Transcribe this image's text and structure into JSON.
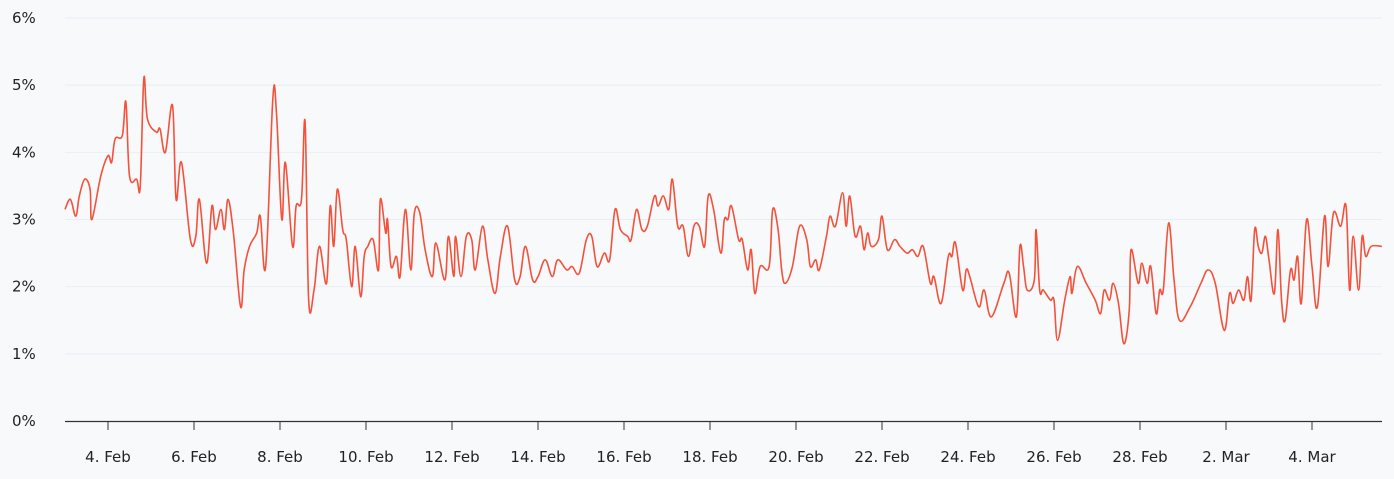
{
  "chart_data": {
    "type": "line",
    "title": "",
    "xlabel": "",
    "ylabel": "",
    "ylim": [
      0,
      6
    ],
    "y_ticks": [
      "0%",
      "1%",
      "2%",
      "3%",
      "4%",
      "5%",
      "6%"
    ],
    "x_range": [
      "02-03 00",
      "03-05 15"
    ],
    "x_ticks": [
      {
        "date": "02-04",
        "label": "4. Feb"
      },
      {
        "date": "02-06",
        "label": "6. Feb"
      },
      {
        "date": "02-08",
        "label": "8. Feb"
      },
      {
        "date": "02-10",
        "label": "10. Feb"
      },
      {
        "date": "02-12",
        "label": "12. Feb"
      },
      {
        "date": "02-14",
        "label": "14. Feb"
      },
      {
        "date": "02-16",
        "label": "16. Feb"
      },
      {
        "date": "02-18",
        "label": "18. Feb"
      },
      {
        "date": "02-20",
        "label": "20. Feb"
      },
      {
        "date": "02-22",
        "label": "22. Feb"
      },
      {
        "date": "02-24",
        "label": "24. Feb"
      },
      {
        "date": "02-26",
        "label": "26. Feb"
      },
      {
        "date": "02-28",
        "label": "28. Feb"
      },
      {
        "date": "03-02",
        "label": "2. Mar"
      },
      {
        "date": "03-04",
        "label": "4. Mar"
      }
    ],
    "grid": true,
    "legend": "none",
    "colors": {
      "line": "#f4513b",
      "grid": "#e6eef8",
      "axis": "#333333",
      "background": "#f8f9fb"
    },
    "series": [
      {
        "x": [
          "02-03 00",
          "02-03 03",
          "02-03 06",
          "02-03 08",
          "02-03 11",
          "02-03 14",
          "02-03 15",
          "02-03 20",
          "02-04 00",
          "02-04 02",
          "02-04 04",
          "02-04 08",
          "02-04 10",
          "02-04 12",
          "02-04 16",
          "02-04 18",
          "02-04 20",
          "02-04 22",
          "02-05 03",
          "02-05 05",
          "02-05 08",
          "02-05 12",
          "02-05 14",
          "02-05 17",
          "02-05 22",
          "02-06 01",
          "02-06 03",
          "02-06 07",
          "02-06 10",
          "02-06 12",
          "02-06 15",
          "02-06 17",
          "02-06 19",
          "02-06 22",
          "02-07 02",
          "02-07 04",
          "02-07 07",
          "02-07 11",
          "02-07 13",
          "02-07 16",
          "02-07 20",
          "02-07 22",
          "02-08 01",
          "02-08 03",
          "02-08 07",
          "02-08 09",
          "02-08 12",
          "02-08 14",
          "02-08 16",
          "02-08 19",
          "02-08 22",
          "02-09 02",
          "02-09 04",
          "02-09 06",
          "02-09 08",
          "02-09 11",
          "02-09 13",
          "02-09 16",
          "02-09 18",
          "02-09 21",
          "02-09 23",
          "02-10 01",
          "02-10 04",
          "02-10 07",
          "02-10 08",
          "02-10 11",
          "02-10 12",
          "02-10 14",
          "02-10 17",
          "02-10 19",
          "02-10 22",
          "02-11 01",
          "02-11 03",
          "02-11 06",
          "02-11 09",
          "02-11 13",
          "02-11 15",
          "02-11 20",
          "02-11 22",
          "02-12 01",
          "02-12 02",
          "02-12 05",
          "02-12 08",
          "02-12 11",
          "02-12 13",
          "02-12 17",
          "02-12 20",
          "02-13 00",
          "02-13 03",
          "02-13 07",
          "02-13 11",
          "02-13 14",
          "02-13 17",
          "02-13 21",
          "02-14 00",
          "02-14 04",
          "02-14 08",
          "02-14 11",
          "02-14 16",
          "02-14 19",
          "02-14 23",
          "02-15 03",
          "02-15 06",
          "02-15 09",
          "02-15 13",
          "02-15 16",
          "02-15 19",
          "02-15 22",
          "02-16 02",
          "02-16 04",
          "02-16 07",
          "02-16 10",
          "02-16 13",
          "02-16 17",
          "02-16 19",
          "02-16 22",
          "02-17 01",
          "02-17 03",
          "02-17 06",
          "02-17 09",
          "02-17 12",
          "02-17 15",
          "02-17 18",
          "02-17 21",
          "02-17 23",
          "02-18 02",
          "02-18 06",
          "02-18 08",
          "02-18 10",
          "02-18 12",
          "02-18 16",
          "02-18 18",
          "02-18 21",
          "02-18 23",
          "02-19 01",
          "02-19 04",
          "02-19 09",
          "02-19 11",
          "02-19 14",
          "02-19 16",
          "02-19 18",
          "02-19 22",
          "02-20 02",
          "02-20 06",
          "02-20 08",
          "02-20 11",
          "02-20 13",
          "02-20 17",
          "02-20 19",
          "02-20 22",
          "02-21 02",
          "02-21 04",
          "02-21 06",
          "02-21 09",
          "02-21 12",
          "02-21 14",
          "02-21 16",
          "02-21 18",
          "02-21 22",
          "02-22 00",
          "02-22 03",
          "02-22 07",
          "02-22 10",
          "02-22 14",
          "02-22 17",
          "02-22 20",
          "02-22 23",
          "02-23 03",
          "02-23 05",
          "02-23 09",
          "02-23 13",
          "02-23 15",
          "02-23 17",
          "02-23 21",
          "02-23 23",
          "02-24 01",
          "02-24 06",
          "02-24 09",
          "02-24 13",
          "02-24 20",
          "02-24 23",
          "02-25 03",
          "02-25 05",
          "02-25 07",
          "02-25 09",
          "02-25 13",
          "02-25 14",
          "02-25 16",
          "02-25 18",
          "02-25 22",
          "02-26 00",
          "02-26 02",
          "02-26 06",
          "02-26 09",
          "02-26 10",
          "02-26 13",
          "02-26 18",
          "02-26 23",
          "02-27 02",
          "02-27 04",
          "02-27 07",
          "02-27 09",
          "02-27 12",
          "02-27 15",
          "02-27 18",
          "02-27 19",
          "02-27 23",
          "02-28 01",
          "02-28 04",
          "02-28 06",
          "02-28 09",
          "02-28 11",
          "02-28 13",
          "02-28 16",
          "02-28 19",
          "02-28 22",
          "03-01 04",
          "03-01 10",
          "03-01 14",
          "03-01 18",
          "03-01 23",
          "03-02 02",
          "03-02 04",
          "03-02 07",
          "03-02 10",
          "03-02 12",
          "03-02 14",
          "03-02 16",
          "03-02 18",
          "03-02 20",
          "03-02 22",
          "03-03 00",
          "03-03 03",
          "03-03 05",
          "03-03 07",
          "03-03 09",
          "03-03 12",
          "03-03 14",
          "03-03 16",
          "03-03 18",
          "03-03 21",
          "03-04 00",
          "03-04 03",
          "03-04 07",
          "03-04 09",
          "03-04 12",
          "03-04 16",
          "03-04 19",
          "03-04 21",
          "03-04 23",
          "03-05 02",
          "03-05 04",
          "03-05 06",
          "03-05 09",
          "03-05 15"
        ],
        "y": [
          3.15,
          3.3,
          3.05,
          3.35,
          3.6,
          3.45,
          3.0,
          3.65,
          3.95,
          3.85,
          4.2,
          4.25,
          4.75,
          3.65,
          3.6,
          3.5,
          5.1,
          4.5,
          4.3,
          4.35,
          4.0,
          4.7,
          3.3,
          3.85,
          2.7,
          2.75,
          3.3,
          2.35,
          3.2,
          2.85,
          3.15,
          2.85,
          3.3,
          2.8,
          1.7,
          2.25,
          2.6,
          2.8,
          3.05,
          2.3,
          4.8,
          4.6,
          3.0,
          3.85,
          2.6,
          3.2,
          3.3,
          4.45,
          1.8,
          1.95,
          2.6,
          2.05,
          3.2,
          2.6,
          3.45,
          2.85,
          2.7,
          2.0,
          2.6,
          1.85,
          2.45,
          2.6,
          2.7,
          2.25,
          3.3,
          2.8,
          3.0,
          2.3,
          2.45,
          2.15,
          3.15,
          2.25,
          3.1,
          3.1,
          2.55,
          2.15,
          2.65,
          2.1,
          2.75,
          2.15,
          2.75,
          2.15,
          2.75,
          2.7,
          2.25,
          2.9,
          2.4,
          1.9,
          2.45,
          2.9,
          2.1,
          2.15,
          2.6,
          2.1,
          2.15,
          2.4,
          2.15,
          2.4,
          2.25,
          2.3,
          2.2,
          2.7,
          2.75,
          2.3,
          2.5,
          2.4,
          3.15,
          2.85,
          2.75,
          2.7,
          3.15,
          2.85,
          2.9,
          3.35,
          3.2,
          3.35,
          3.15,
          3.6,
          2.9,
          2.9,
          2.45,
          2.9,
          2.9,
          2.6,
          3.35,
          3.15,
          2.5,
          3.0,
          3.0,
          3.2,
          2.7,
          2.7,
          2.25,
          2.55,
          1.9,
          2.3,
          2.3,
          3.15,
          2.85,
          2.25,
          2.05,
          2.3,
          2.9,
          2.7,
          2.3,
          2.4,
          2.25,
          2.75,
          3.05,
          2.9,
          3.4,
          2.9,
          3.35,
          2.75,
          2.9,
          2.55,
          2.8,
          2.6,
          2.7,
          3.05,
          2.55,
          2.7,
          2.6,
          2.5,
          2.55,
          2.45,
          2.6,
          2.05,
          2.15,
          1.75,
          2.45,
          2.45,
          2.65,
          1.95,
          2.25,
          2.15,
          1.7,
          1.95,
          1.55,
          2.05,
          2.2,
          1.55,
          2.6,
          2.3,
          1.95,
          2.1,
          2.85,
          1.95,
          1.95,
          1.8,
          1.8,
          1.2,
          1.8,
          2.15,
          1.9,
          2.3,
          2.05,
          1.8,
          1.6,
          1.95,
          1.8,
          2.05,
          1.75,
          1.15,
          1.65,
          2.55,
          2.05,
          2.35,
          2.05,
          2.3,
          1.6,
          1.95,
          1.95,
          2.95,
          2.1,
          1.5,
          1.7,
          2.05,
          2.25,
          2.05,
          1.35,
          1.9,
          1.75,
          1.95,
          1.8,
          2.15,
          1.8,
          2.85,
          2.6,
          2.5,
          2.75,
          2.4,
          1.9,
          2.85,
          1.8,
          1.5,
          2.25,
          2.1,
          2.45,
          1.75,
          3.0,
          2.3,
          1.7,
          3.05,
          2.3,
          3.1,
          2.9,
          3.2,
          1.95,
          2.75,
          1.95,
          2.75,
          2.45,
          2.6,
          2.6
        ]
      }
    ]
  }
}
